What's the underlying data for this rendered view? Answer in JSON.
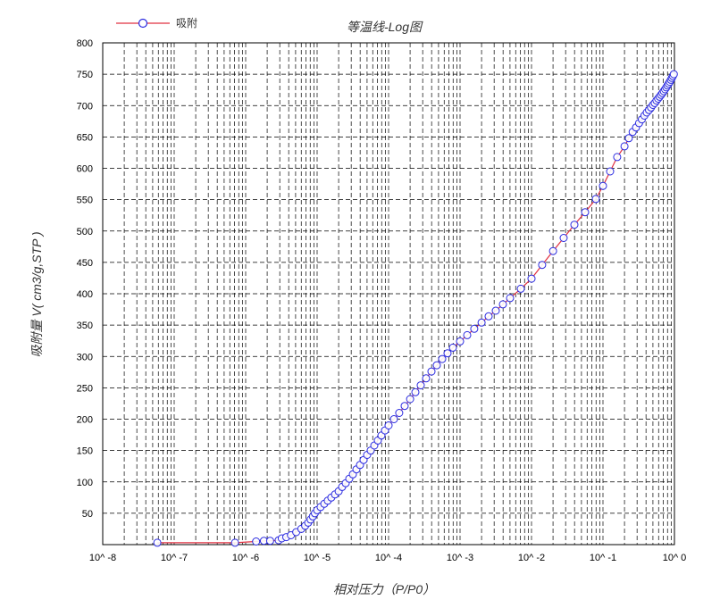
{
  "chart_data": {
    "type": "scatter",
    "title": "等温线-Log图",
    "xlabel": "相对压力（P/P0）",
    "ylabel": "吸附量 V( cm3/g,STP )",
    "x_scale": "log",
    "xlim": [
      1e-08,
      1
    ],
    "ylim": [
      0,
      800
    ],
    "grid": true,
    "legend_position": "top-left",
    "x_tick_labels": [
      "10^ -8",
      "10^ -7",
      "10^ -6",
      "10^ -5",
      "10^ -4",
      "10^ -3",
      "10^ -2",
      "10^ -1",
      "10^ 0"
    ],
    "y_ticks": [
      50,
      100,
      150,
      200,
      250,
      300,
      350,
      400,
      450,
      500,
      550,
      600,
      650,
      700,
      750,
      800
    ],
    "series": [
      {
        "name": "吸附",
        "line_color": "#e03040",
        "marker_color": "#2a2ae0",
        "points": [
          [
            5.8e-08,
            3
          ],
          [
            7.1e-07,
            3
          ],
          [
            1.4e-06,
            5
          ],
          [
            1.8e-06,
            6
          ],
          [
            2.2e-06,
            6
          ],
          [
            2.9e-06,
            7
          ],
          [
            3.2e-06,
            10
          ],
          [
            3.7e-06,
            12
          ],
          [
            4.3e-06,
            15
          ],
          [
            5.1e-06,
            20
          ],
          [
            6e-06,
            25
          ],
          [
            6.8e-06,
            30
          ],
          [
            7.5e-06,
            35
          ],
          [
            8.1e-06,
            40
          ],
          [
            8.7e-06,
            45
          ],
          [
            9.3e-06,
            50
          ],
          [
            1e-05,
            55
          ],
          [
            1.12e-05,
            60
          ],
          [
            1.26e-05,
            65
          ],
          [
            1.41e-05,
            70
          ],
          [
            1.58e-05,
            75
          ],
          [
            1.78e-05,
            80
          ],
          [
            2e-05,
            85
          ],
          [
            2.24e-05,
            92
          ],
          [
            2.51e-05,
            98
          ],
          [
            2.82e-05,
            105
          ],
          [
            3.16e-05,
            112
          ],
          [
            3.55e-05,
            120
          ],
          [
            3.98e-05,
            127
          ],
          [
            4.47e-05,
            135
          ],
          [
            5.01e-05,
            143
          ],
          [
            5.62e-05,
            150
          ],
          [
            6.31e-05,
            158
          ],
          [
            7.08e-05,
            166
          ],
          [
            7.94e-05,
            174
          ],
          [
            8.91e-05,
            182
          ],
          [
            0.0001,
            190
          ],
          [
            0.000119,
            200
          ],
          [
            0.000141,
            210
          ],
          [
            0.000168,
            221
          ],
          [
            0.0002,
            232
          ],
          [
            0.000237,
            243
          ],
          [
            0.000282,
            254
          ],
          [
            0.000335,
            265
          ],
          [
            0.000398,
            276
          ],
          [
            0.000473,
            286
          ],
          [
            0.000562,
            296
          ],
          [
            0.000668,
            305
          ],
          [
            0.000794,
            314
          ],
          [
            0.001,
            324
          ],
          [
            0.00126,
            334
          ],
          [
            0.00158,
            344
          ],
          [
            0.002,
            354
          ],
          [
            0.00251,
            364
          ],
          [
            0.00316,
            373
          ],
          [
            0.00398,
            383
          ],
          [
            0.00501,
            393
          ],
          [
            0.00708,
            408
          ],
          [
            0.01,
            424
          ],
          [
            0.0141,
            446
          ],
          [
            0.02,
            468
          ],
          [
            0.0282,
            489
          ],
          [
            0.0398,
            510
          ],
          [
            0.0562,
            530
          ],
          [
            0.0794,
            551
          ],
          [
            0.1,
            572
          ],
          [
            0.126,
            595
          ],
          [
            0.158,
            618
          ],
          [
            0.2,
            635
          ],
          [
            0.23,
            648
          ],
          [
            0.26,
            658
          ],
          [
            0.29,
            665
          ],
          [
            0.32,
            672
          ],
          [
            0.35,
            678
          ],
          [
            0.38,
            684
          ],
          [
            0.41,
            689
          ],
          [
            0.44,
            693
          ],
          [
            0.47,
            697
          ],
          [
            0.5,
            701
          ],
          [
            0.53,
            704
          ],
          [
            0.56,
            708
          ],
          [
            0.59,
            711
          ],
          [
            0.62,
            714
          ],
          [
            0.65,
            717
          ],
          [
            0.68,
            720
          ],
          [
            0.71,
            723
          ],
          [
            0.74,
            726
          ],
          [
            0.77,
            729
          ],
          [
            0.8,
            732
          ],
          [
            0.83,
            735
          ],
          [
            0.86,
            738
          ],
          [
            0.89,
            741
          ],
          [
            0.92,
            744
          ],
          [
            0.95,
            747
          ],
          [
            0.98,
            750
          ]
        ]
      }
    ]
  }
}
